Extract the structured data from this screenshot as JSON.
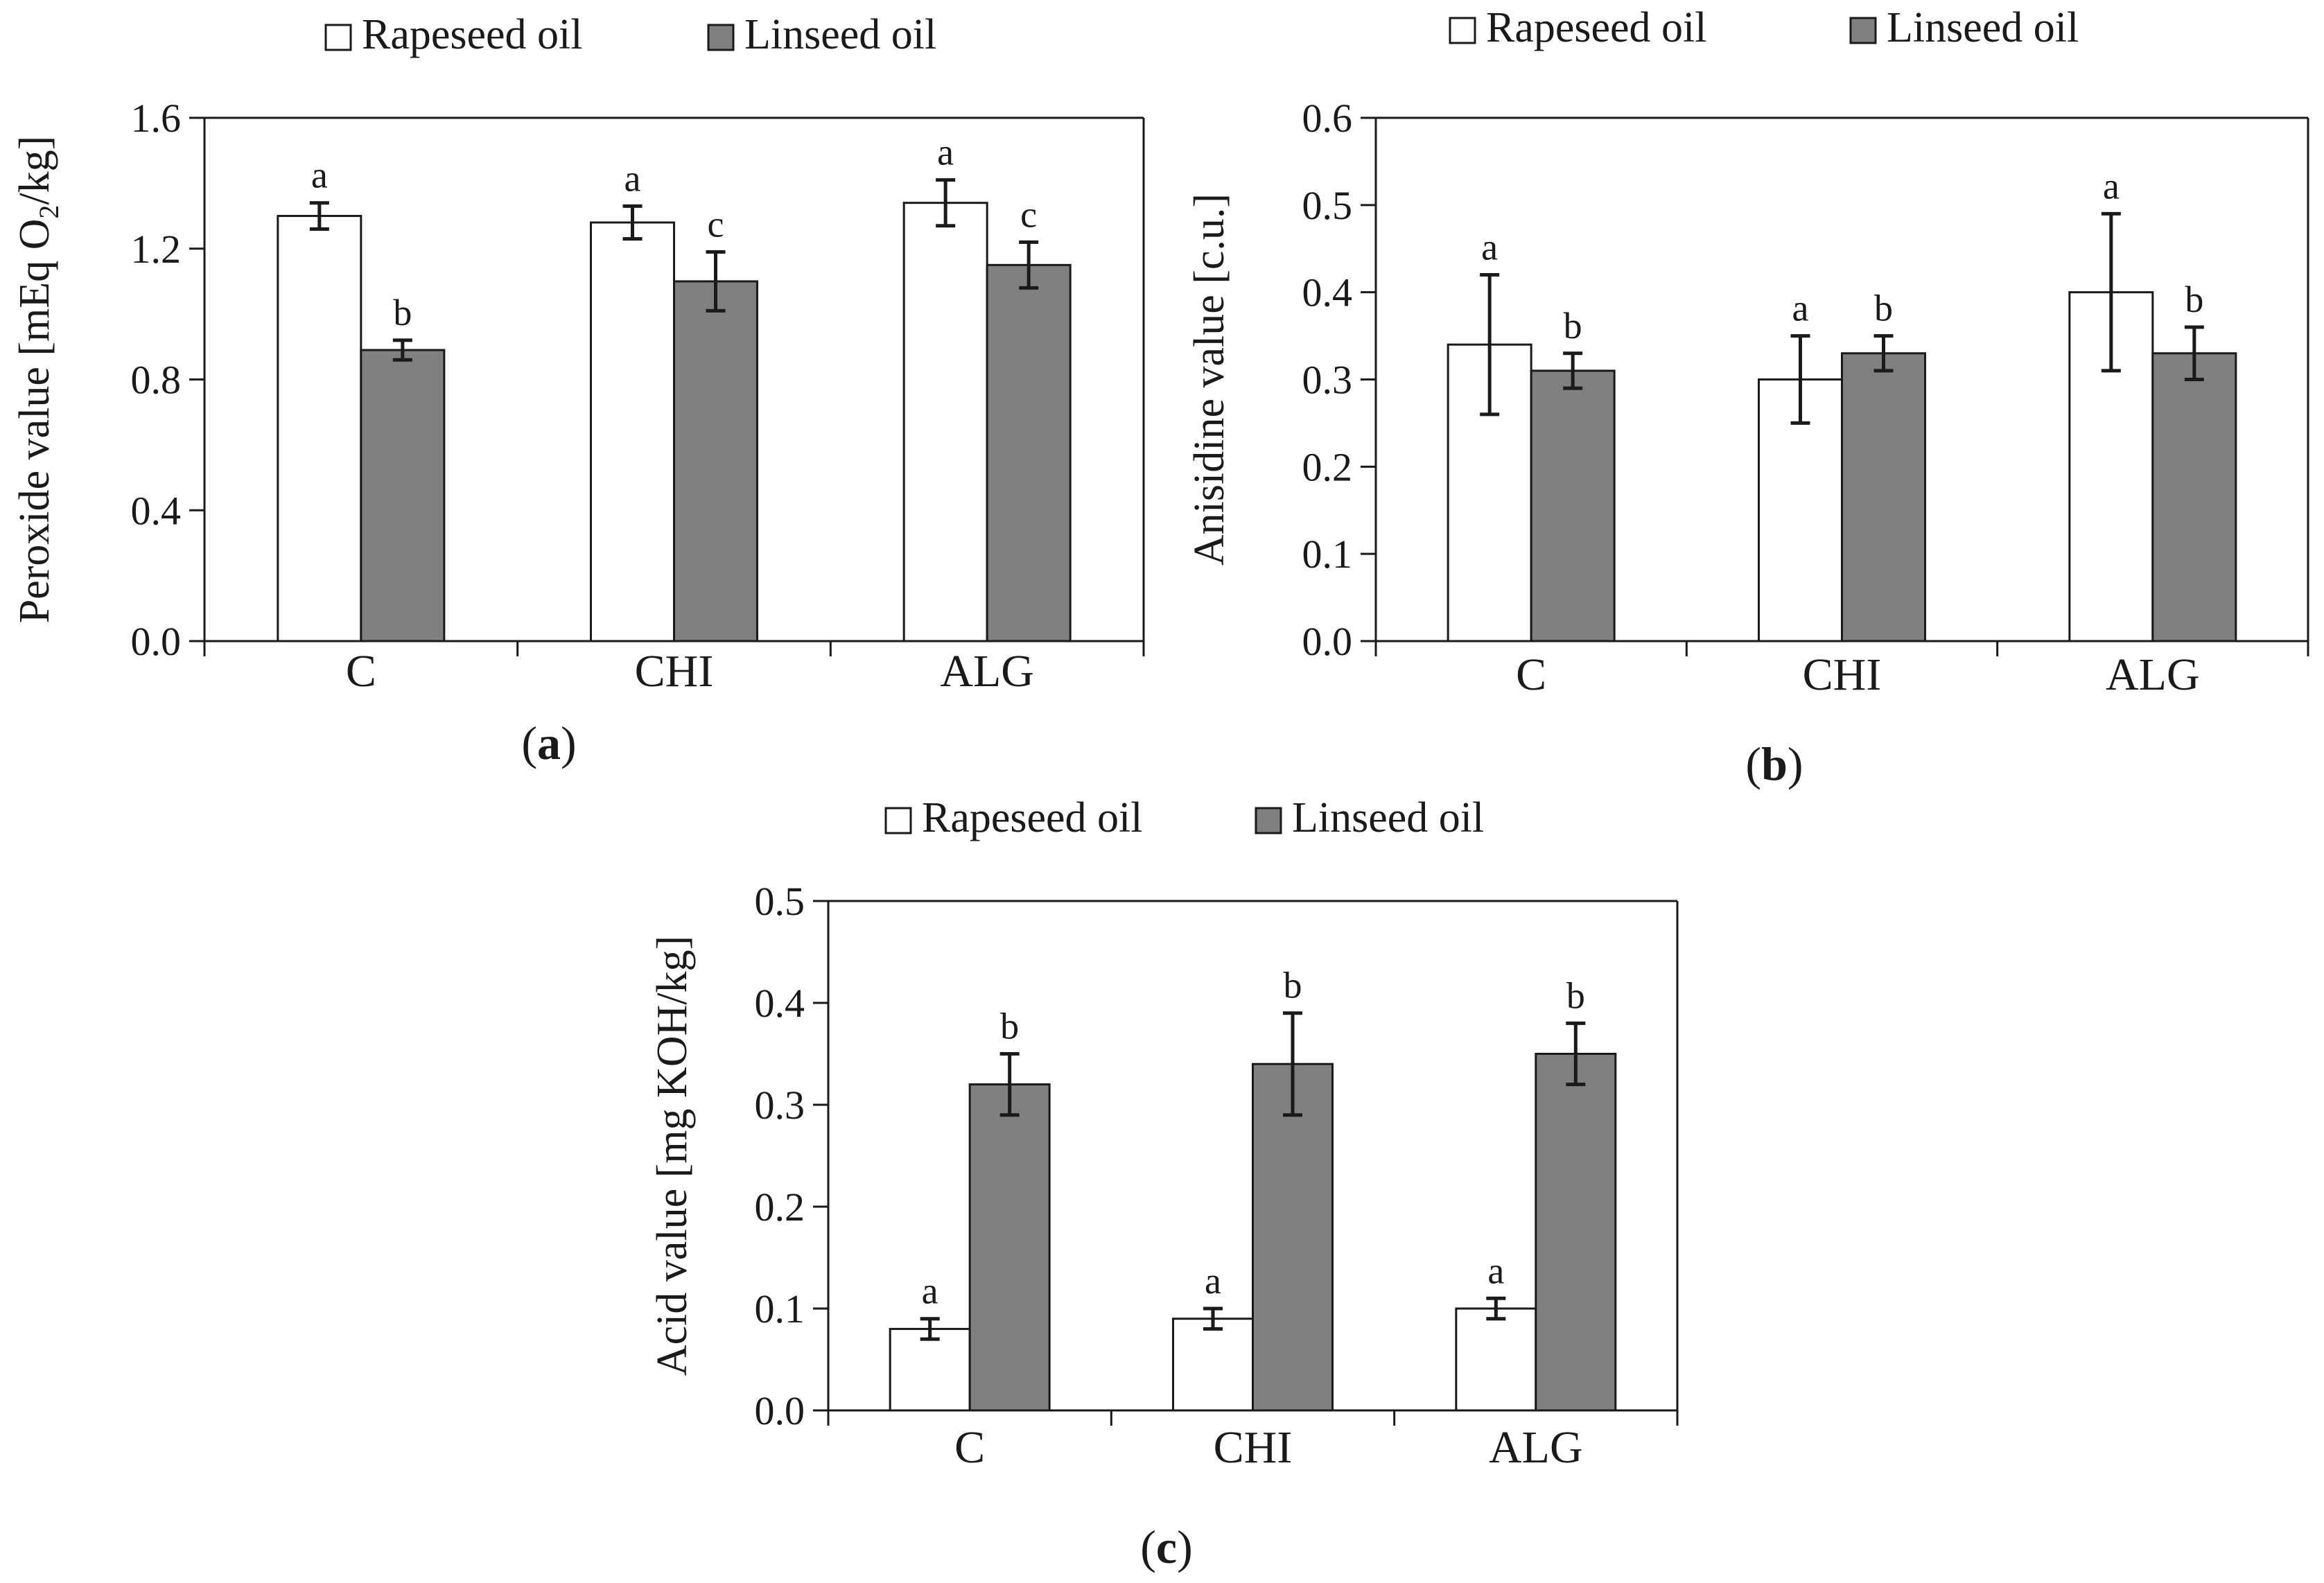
{
  "chart_data": [
    {
      "id": "a",
      "type": "bar",
      "panel_label": "a",
      "ylabel_main": "Peroxide value [mEq O",
      "ylabel_sub": "2",
      "ylabel_tail": "/kg]",
      "categories": [
        "C",
        "CHI",
        "ALG"
      ],
      "ylim": [
        0,
        1.6
      ],
      "yticks": [
        "0.0",
        "0.4",
        "0.8",
        "1.2",
        "1.6"
      ],
      "ytick_values": [
        0,
        0.4,
        0.8,
        1.2,
        1.6
      ],
      "grid": false,
      "legend": "top",
      "series": [
        {
          "name": "Rapeseed oil",
          "values": [
            1.3,
            1.28,
            1.34
          ],
          "errors": [
            0.04,
            0.05,
            0.07
          ],
          "letters": [
            "a",
            "a",
            "a"
          ]
        },
        {
          "name": "Linseed oil",
          "values": [
            0.89,
            1.1,
            1.15
          ],
          "errors": [
            0.03,
            0.09,
            0.07
          ],
          "letters": [
            "b",
            "c",
            "c"
          ]
        }
      ]
    },
    {
      "id": "b",
      "type": "bar",
      "panel_label": "b",
      "ylabel_main": "Anisidine value [c.u.]",
      "categories": [
        "C",
        "CHI",
        "ALG"
      ],
      "ylim": [
        0,
        0.6
      ],
      "yticks": [
        "0.0",
        "0.1",
        "0.2",
        "0.3",
        "0.4",
        "0.5",
        "0.6"
      ],
      "ytick_values": [
        0,
        0.1,
        0.2,
        0.3,
        0.4,
        0.5,
        0.6
      ],
      "grid": false,
      "legend": "top",
      "series": [
        {
          "name": "Rapeseed oil",
          "values": [
            0.34,
            0.3,
            0.4
          ],
          "errors": [
            0.08,
            0.05,
            0.09
          ],
          "letters": [
            "a",
            "a",
            "a"
          ]
        },
        {
          "name": "Linseed oil",
          "values": [
            0.31,
            0.33,
            0.33
          ],
          "errors": [
            0.02,
            0.02,
            0.03
          ],
          "letters": [
            "b",
            "b",
            "b"
          ]
        }
      ]
    },
    {
      "id": "c",
      "type": "bar",
      "panel_label": "c",
      "ylabel_main": "Acid value [mg KOH/kg]",
      "categories": [
        "C",
        "CHI",
        "ALG"
      ],
      "ylim": [
        0,
        0.5
      ],
      "yticks": [
        "0.0",
        "0.1",
        "0.2",
        "0.3",
        "0.4",
        "0.5"
      ],
      "ytick_values": [
        0,
        0.1,
        0.2,
        0.3,
        0.4,
        0.5
      ],
      "grid": false,
      "legend": "top",
      "series": [
        {
          "name": "Rapeseed oil",
          "values": [
            0.08,
            0.09,
            0.1
          ],
          "errors": [
            0.01,
            0.01,
            0.01
          ],
          "letters": [
            "a",
            "a",
            "a"
          ]
        },
        {
          "name": "Linseed oil",
          "values": [
            0.32,
            0.34,
            0.35
          ],
          "errors": [
            0.03,
            0.05,
            0.03
          ],
          "letters": [
            "b",
            "b",
            "b"
          ]
        }
      ]
    }
  ]
}
